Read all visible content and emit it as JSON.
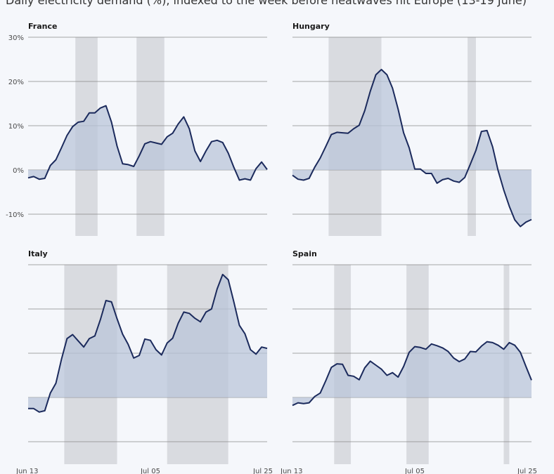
{
  "title": "Daily electricity demand (%), indexed to the week before heatwaves hit Europe (13-19 June)",
  "colors": {
    "line": "#1b2a5c",
    "fill": "#b9c6da",
    "shade": "#d9dbe0",
    "grid": "#888888",
    "background": "#f5f7fb"
  },
  "chart_data": [
    {
      "type": "area",
      "title": "France",
      "ylim": [
        -15,
        30
      ],
      "yticks": [
        -10,
        0,
        10,
        20,
        30
      ],
      "ytick_labels": [
        "-10%",
        "0%",
        "10%",
        "20%",
        "30%"
      ],
      "x_start": "Jun 13",
      "xticks": [
        {
          "label": "Jun 13",
          "day": 0
        },
        {
          "label": "Jul 05",
          "day": 22
        },
        {
          "label": "Jul 25",
          "day": 42
        }
      ],
      "shaded_ranges": [
        [
          8.5,
          12.5
        ],
        [
          19.5,
          24.5
        ]
      ],
      "values": [
        -1.8,
        -1.5,
        -2.1,
        -1.9,
        1.0,
        2.3,
        5.0,
        7.8,
        9.8,
        10.8,
        11.0,
        12.9,
        12.9,
        14.0,
        14.5,
        10.8,
        5.4,
        1.4,
        1.2,
        0.8,
        3.2,
        5.9,
        6.4,
        6.1,
        5.8,
        7.5,
        8.3,
        10.4,
        12.0,
        9.3,
        4.3,
        1.9,
        4.3,
        6.4,
        6.7,
        6.2,
        3.8,
        0.6,
        -2.3,
        -2.0,
        -2.3,
        0.3,
        1.8,
        0.1
      ]
    },
    {
      "type": "area",
      "title": "Hungary",
      "ylim": [
        -15,
        30
      ],
      "yticks": [
        -10,
        0,
        10,
        20,
        30
      ],
      "x_start": "Jun 13",
      "shaded_ranges": [
        [
          6.5,
          16
        ],
        [
          31.5,
          33
        ]
      ],
      "values": [
        -1.2,
        -2.1,
        -2.3,
        -1.9,
        0.6,
        2.7,
        5.3,
        8.0,
        8.5,
        8.4,
        8.3,
        9.3,
        10.1,
        13.4,
        17.8,
        21.5,
        22.7,
        21.5,
        18.5,
        13.8,
        8.4,
        5.0,
        0.2,
        0.2,
        -0.8,
        -0.8,
        -3.0,
        -2.2,
        -1.9,
        -2.5,
        -2.8,
        -1.7,
        1.3,
        4.4,
        8.7,
        8.9,
        5.2,
        -0.2,
        -4.5,
        -8.2,
        -11.3,
        -12.8,
        -11.8,
        -11.2
      ]
    },
    {
      "type": "area",
      "title": "Italy",
      "ylim": [
        -15,
        30
      ],
      "yticks": [
        -10,
        0,
        10,
        20,
        30
      ],
      "x_start": "Jun 13",
      "shaded_ranges": [
        [
          6.5,
          16
        ],
        [
          25,
          36
        ]
      ],
      "values": [
        -2.5,
        -2.5,
        -3.3,
        -3.0,
        1.0,
        3.2,
        8.6,
        13.3,
        14.2,
        12.8,
        11.4,
        13.3,
        13.9,
        17.6,
        21.9,
        21.6,
        17.8,
        14.3,
        12.0,
        8.9,
        9.5,
        13.2,
        12.9,
        10.8,
        9.6,
        12.3,
        13.4,
        16.8,
        19.3,
        19.0,
        17.9,
        17.1,
        19.3,
        20.0,
        24.5,
        27.8,
        26.6,
        21.6,
        16.3,
        14.4,
        10.8,
        9.8,
        11.4,
        11.1
      ]
    },
    {
      "type": "area",
      "title": "Spain",
      "ylim": [
        -15,
        30
      ],
      "yticks": [
        -10,
        0,
        10,
        20,
        30
      ],
      "x_start": "Jun 13",
      "xticks": [
        {
          "label": "Jun 13",
          "day": 0
        },
        {
          "label": "Jul 05",
          "day": 22
        },
        {
          "label": "Jul 25",
          "day": 42
        }
      ],
      "shaded_ranges": [
        [
          7.5,
          10.5
        ],
        [
          20.5,
          24.5
        ],
        [
          38,
          39
        ]
      ],
      "values": [
        -1.8,
        -1.2,
        -1.4,
        -1.2,
        0.2,
        1.0,
        3.8,
        6.8,
        7.6,
        7.5,
        5.0,
        4.8,
        4.0,
        6.7,
        8.2,
        7.3,
        6.4,
        5.0,
        5.6,
        4.6,
        7.0,
        10.2,
        11.5,
        11.3,
        10.9,
        12.1,
        11.7,
        11.2,
        10.4,
        8.9,
        8.1,
        8.7,
        10.4,
        10.3,
        11.6,
        12.6,
        12.4,
        11.8,
        10.9,
        12.4,
        11.8,
        10.2,
        7.0,
        3.9
      ]
    }
  ]
}
